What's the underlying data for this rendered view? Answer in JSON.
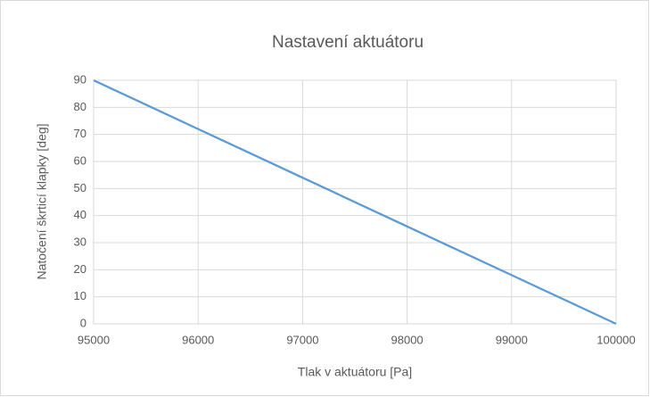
{
  "chart_data": {
    "type": "line",
    "title": "Nastavení aktuátoru",
    "x_label": "Tlak v aktuátoru [Pa]",
    "y_label": "Natočení škrticí klapky [deg]",
    "x": [
      95000,
      96000,
      97000,
      98000,
      99000,
      100000
    ],
    "series": [
      {
        "name": "Natočení",
        "color": "#5b9bd5",
        "values": [
          90,
          72,
          54,
          36,
          18,
          0
        ]
      }
    ],
    "xlim": [
      95000,
      100000
    ],
    "xticks": [
      95000,
      96000,
      97000,
      98000,
      99000,
      100000
    ],
    "ylim": [
      0,
      90
    ],
    "yticks": [
      0,
      10,
      20,
      30,
      40,
      50,
      60,
      70,
      80,
      90
    ],
    "grid": true
  }
}
